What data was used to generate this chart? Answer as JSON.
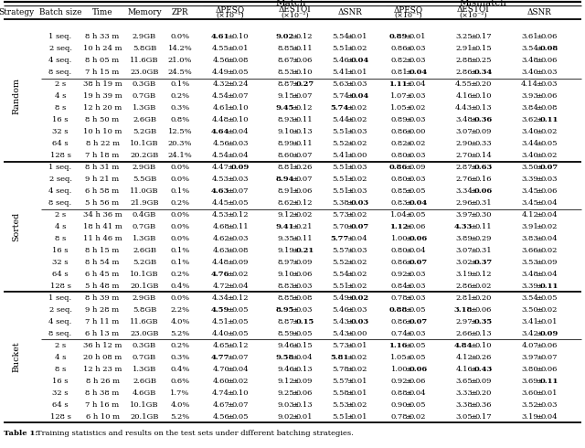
{
  "rows": [
    [
      "1 seq.",
      "8h33m",
      "2.9GB",
      "0.0%",
      "4.61",
      "0.10",
      "9.02",
      "0.12",
      "5.54",
      "0.01",
      "0.89",
      "0.01",
      "3.25",
      "0.17",
      "3.61",
      "0.06",
      true,
      false,
      true,
      false,
      false,
      false,
      true,
      false,
      false,
      false,
      false,
      false
    ],
    [
      "2 seq.",
      "10h24m",
      "5.8GB",
      "14.2%",
      "4.55",
      "0.01",
      "8.85",
      "0.11",
      "5.51",
      "0.02",
      "0.86",
      "0.03",
      "2.91",
      "0.15",
      "3.54",
      "0.08",
      false,
      false,
      false,
      false,
      false,
      false,
      false,
      false,
      false,
      false,
      false,
      true
    ],
    [
      "4 seq.",
      "8h05m",
      "11.6GB",
      "21.0%",
      "4.56",
      "0.08",
      "8.67",
      "0.06",
      "5.46",
      "0.04",
      "0.82",
      "0.03",
      "2.88",
      "0.25",
      "3.48",
      "0.06",
      false,
      false,
      false,
      false,
      false,
      true,
      false,
      false,
      false,
      false,
      false,
      false
    ],
    [
      "8 seq.",
      "7h15m",
      "23.0GB",
      "24.5%",
      "4.49",
      "0.05",
      "8.53",
      "0.10",
      "5.41",
      "0.01",
      "0.81",
      "0.04",
      "2.86",
      "0.34",
      "3.40",
      "0.03",
      false,
      false,
      false,
      false,
      false,
      false,
      false,
      true,
      false,
      true,
      false,
      false
    ],
    [
      "2 s",
      "38h19m",
      "0.3GB",
      "0.1%",
      "4.32",
      "0.24",
      "8.87",
      "0.27",
      "5.63",
      "0.03",
      "1.11",
      "0.04",
      "4.55",
      "0.20",
      "4.14",
      "0.03",
      false,
      false,
      false,
      true,
      false,
      false,
      true,
      false,
      false,
      false,
      false,
      false
    ],
    [
      "4 s",
      "19h39m",
      "0.7GB",
      "0.2%",
      "4.54",
      "0.07",
      "9.15",
      "0.07",
      "5.74",
      "0.04",
      "1.07",
      "0.03",
      "4.16",
      "0.10",
      "3.93",
      "0.06",
      false,
      false,
      false,
      false,
      false,
      true,
      false,
      false,
      false,
      false,
      false,
      false
    ],
    [
      "8 s",
      "12h20m",
      "1.3GB",
      "0.3%",
      "4.61",
      "0.10",
      "9.45",
      "0.12",
      "5.74",
      "0.02",
      "1.05",
      "0.02",
      "4.43",
      "0.13",
      "3.84",
      "0.08",
      false,
      false,
      true,
      false,
      true,
      false,
      false,
      false,
      false,
      false,
      false,
      false
    ],
    [
      "16 s",
      "8h50m",
      "2.6GB",
      "0.8%",
      "4.48",
      "0.10",
      "8.93",
      "0.11",
      "5.44",
      "0.02",
      "0.89",
      "0.03",
      "3.48",
      "0.36",
      "3.62",
      "0.11",
      false,
      false,
      false,
      false,
      false,
      false,
      false,
      false,
      false,
      true,
      false,
      true
    ],
    [
      "32 s",
      "10h10m",
      "5.2GB",
      "12.5%",
      "4.64",
      "0.04",
      "9.10",
      "0.13",
      "5.51",
      "0.03",
      "0.86",
      "0.00",
      "3.07",
      "0.09",
      "3.40",
      "0.02",
      true,
      false,
      false,
      false,
      false,
      false,
      false,
      false,
      false,
      false,
      false,
      false
    ],
    [
      "64 s",
      "8h22m",
      "10.1GB",
      "20.3%",
      "4.56",
      "0.03",
      "8.99",
      "0.11",
      "5.52",
      "0.02",
      "0.82",
      "0.02",
      "2.90",
      "0.33",
      "3.44",
      "0.05",
      false,
      false,
      false,
      false,
      false,
      false,
      false,
      false,
      false,
      false,
      false,
      false
    ],
    [
      "128 s",
      "7h18m",
      "20.2GB",
      "24.1%",
      "4.54",
      "0.04",
      "8.60",
      "0.07",
      "5.41",
      "0.00",
      "0.80",
      "0.03",
      "2.70",
      "0.14",
      "3.40",
      "0.02",
      false,
      false,
      false,
      false,
      false,
      false,
      false,
      false,
      false,
      false,
      false,
      false
    ],
    [
      "1 seq.",
      "8h31m",
      "2.9GB",
      "0.0%",
      "4.47",
      "0.09",
      "8.81",
      "0.26",
      "5.51",
      "0.03",
      "0.86",
      "0.09",
      "2.87",
      "0.63",
      "3.50",
      "0.07",
      false,
      true,
      false,
      false,
      false,
      false,
      true,
      false,
      false,
      true,
      false,
      true
    ],
    [
      "2 seq.",
      "9h21m",
      "5.5GB",
      "0.0%",
      "4.53",
      "0.03",
      "8.94",
      "0.07",
      "5.51",
      "0.02",
      "0.80",
      "0.03",
      "2.76",
      "0.16",
      "3.39",
      "0.03",
      false,
      false,
      true,
      false,
      false,
      false,
      false,
      false,
      false,
      false,
      false,
      false
    ],
    [
      "4 seq.",
      "6h58m",
      "11.0GB",
      "0.1%",
      "4.63",
      "0.07",
      "8.91",
      "0.06",
      "5.51",
      "0.03",
      "0.85",
      "0.05",
      "3.34",
      "0.06",
      "3.45",
      "0.06",
      true,
      false,
      false,
      false,
      false,
      false,
      false,
      false,
      false,
      true,
      false,
      false
    ],
    [
      "8 seq.",
      "5h56m",
      "21.9GB",
      "0.2%",
      "4.45",
      "0.05",
      "8.62",
      "0.12",
      "5.38",
      "0.03",
      "0.83",
      "0.04",
      "2.96",
      "0.31",
      "3.45",
      "0.04",
      false,
      false,
      false,
      false,
      false,
      true,
      false,
      true,
      false,
      false,
      false,
      false
    ],
    [
      "2 s",
      "34h36m",
      "0.4GB",
      "0.0%",
      "4.53",
      "0.12",
      "9.12",
      "0.02",
      "5.73",
      "0.02",
      "1.04",
      "0.05",
      "3.97",
      "0.30",
      "4.12",
      "0.04",
      false,
      false,
      false,
      false,
      false,
      false,
      false,
      false,
      false,
      false,
      false,
      false
    ],
    [
      "4 s",
      "18h41m",
      "0.7GB",
      "0.0%",
      "4.68",
      "0.11",
      "9.41",
      "0.21",
      "5.70",
      "0.07",
      "1.12",
      "0.06",
      "4.33",
      "0.11",
      "3.91",
      "0.02",
      false,
      false,
      true,
      false,
      false,
      true,
      true,
      false,
      true,
      false,
      false,
      false
    ],
    [
      "8 s",
      "11h46m",
      "1.3GB",
      "0.0%",
      "4.62",
      "0.03",
      "9.35",
      "0.11",
      "5.77",
      "0.04",
      "1.00",
      "0.06",
      "3.89",
      "0.29",
      "3.83",
      "0.04",
      false,
      false,
      false,
      false,
      true,
      false,
      false,
      true,
      false,
      false,
      false,
      false
    ],
    [
      "16 s",
      "8h15m",
      "2.6GB",
      "0.1%",
      "4.63",
      "0.08",
      "9.19",
      "0.21",
      "5.57",
      "0.03",
      "0.80",
      "0.04",
      "3.07",
      "0.31",
      "3.66",
      "0.02",
      false,
      false,
      false,
      true,
      false,
      false,
      false,
      false,
      false,
      false,
      false,
      false
    ],
    [
      "32 s",
      "8h54m",
      "5.2GB",
      "0.1%",
      "4.48",
      "0.09",
      "8.97",
      "0.09",
      "5.52",
      "0.02",
      "0.86",
      "0.07",
      "3.02",
      "0.37",
      "3.53",
      "0.09",
      false,
      false,
      false,
      false,
      false,
      false,
      false,
      true,
      false,
      true,
      false,
      false
    ],
    [
      "64 s",
      "6h45m",
      "10.1GB",
      "0.2%",
      "4.76",
      "0.02",
      "9.10",
      "0.06",
      "5.54",
      "0.02",
      "0.92",
      "0.03",
      "3.19",
      "0.12",
      "3.48",
      "0.04",
      true,
      false,
      false,
      false,
      false,
      false,
      false,
      false,
      false,
      false,
      false,
      false
    ],
    [
      "128 s",
      "5h48m",
      "20.1GB",
      "0.4%",
      "4.72",
      "0.04",
      "8.83",
      "0.03",
      "5.51",
      "0.02",
      "0.84",
      "0.03",
      "2.86",
      "0.02",
      "3.39",
      "0.11",
      false,
      false,
      false,
      false,
      false,
      false,
      false,
      false,
      false,
      false,
      false,
      true
    ],
    [
      "1 seq.",
      "8h39m",
      "2.9GB",
      "0.0%",
      "4.34",
      "0.12",
      "8.85",
      "0.08",
      "5.49",
      "0.02",
      "0.78",
      "0.03",
      "2.81",
      "0.20",
      "3.54",
      "0.05",
      false,
      false,
      false,
      false,
      false,
      true,
      false,
      false,
      false,
      false,
      false,
      false
    ],
    [
      "2 seq.",
      "9h28m",
      "5.8GB",
      "2.2%",
      "4.59",
      "0.05",
      "8.95",
      "0.03",
      "5.46",
      "0.03",
      "0.88",
      "0.05",
      "3.18",
      "0.06",
      "3.50",
      "0.02",
      true,
      false,
      true,
      false,
      false,
      false,
      true,
      false,
      true,
      false,
      false,
      false
    ],
    [
      "4 seq.",
      "7h11m",
      "11.6GB",
      "4.0%",
      "4.51",
      "0.05",
      "8.87",
      "0.15",
      "5.43",
      "0.03",
      "0.86",
      "0.07",
      "2.97",
      "0.35",
      "3.41",
      "0.01",
      false,
      false,
      false,
      true,
      false,
      true,
      false,
      true,
      false,
      true,
      false,
      false
    ],
    [
      "8 seq.",
      "6h13m",
      "23.0GB",
      "5.2%",
      "4.40",
      "0.05",
      "8.59",
      "0.05",
      "5.43",
      "0.00",
      "0.74",
      "0.03",
      "2.66",
      "0.13",
      "3.42",
      "0.09",
      false,
      false,
      false,
      false,
      false,
      false,
      false,
      false,
      false,
      false,
      false,
      true
    ],
    [
      "2 s",
      "36h12m",
      "0.3GB",
      "0.2%",
      "4.65",
      "0.12",
      "9.46",
      "0.15",
      "5.73",
      "0.01",
      "1.16",
      "0.05",
      "4.84",
      "0.10",
      "4.07",
      "0.06",
      false,
      false,
      false,
      false,
      false,
      false,
      true,
      false,
      true,
      false,
      false,
      false
    ],
    [
      "4 s",
      "20h08m",
      "0.7GB",
      "0.3%",
      "4.77",
      "0.07",
      "9.58",
      "0.04",
      "5.81",
      "0.02",
      "1.05",
      "0.05",
      "4.12",
      "0.26",
      "3.97",
      "0.07",
      true,
      false,
      true,
      false,
      true,
      false,
      false,
      false,
      false,
      false,
      false,
      false
    ],
    [
      "8 s",
      "12h23m",
      "1.3GB",
      "0.4%",
      "4.70",
      "0.04",
      "9.46",
      "0.13",
      "5.78",
      "0.02",
      "1.00",
      "0.06",
      "4.16",
      "0.43",
      "3.80",
      "0.06",
      false,
      false,
      false,
      false,
      false,
      false,
      false,
      true,
      false,
      true,
      false,
      false
    ],
    [
      "16 s",
      "8h26m",
      "2.6GB",
      "0.6%",
      "4.60",
      "0.02",
      "9.12",
      "0.09",
      "5.57",
      "0.01",
      "0.92",
      "0.06",
      "3.65",
      "0.09",
      "3.69",
      "0.11",
      false,
      false,
      false,
      false,
      false,
      false,
      false,
      false,
      false,
      false,
      false,
      true
    ],
    [
      "32 s",
      "8h38m",
      "4.6GB",
      "1.7%",
      "4.74",
      "0.10",
      "9.25",
      "0.06",
      "5.58",
      "0.01",
      "0.88",
      "0.04",
      "3.33",
      "0.20",
      "3.60",
      "0.01",
      false,
      false,
      false,
      false,
      false,
      false,
      false,
      false,
      false,
      false,
      false,
      false
    ],
    [
      "64 s",
      "7h16m",
      "10.1GB",
      "4.0%",
      "4.67",
      "0.07",
      "9.03",
      "0.13",
      "5.53",
      "0.02",
      "0.90",
      "0.05",
      "3.38",
      "0.36",
      "3.52",
      "0.03",
      false,
      false,
      false,
      false,
      false,
      false,
      false,
      false,
      false,
      false,
      false,
      false
    ],
    [
      "128 s",
      "6h10m",
      "20.1GB",
      "5.2%",
      "4.56",
      "0.05",
      "9.02",
      "0.01",
      "5.51",
      "0.01",
      "0.78",
      "0.02",
      "3.05",
      "0.17",
      "3.19",
      "0.04",
      false,
      false,
      false,
      false,
      false,
      false,
      false,
      false,
      false,
      false,
      false,
      false
    ]
  ],
  "strategy_groups": [
    {
      "name": "Random",
      "rows": [
        0,
        10
      ]
    },
    {
      "name": "Sorted",
      "rows": [
        11,
        21
      ]
    },
    {
      "name": "Bucket",
      "rows": [
        22,
        32
      ]
    }
  ],
  "thin_sep_after": [
    3,
    14,
    25
  ],
  "thick_sep_after": [
    10,
    21
  ],
  "caption": "Training statistics and results on the test sets under different batching strategies."
}
